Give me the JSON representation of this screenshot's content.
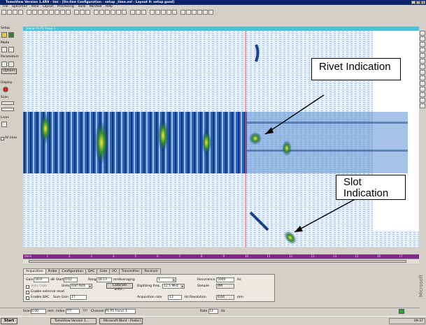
{
  "window": {
    "title": "TomoView Version 1.4R9 - tmi - [On-line Configuration - setup _time.vol - Layout 9: setup gsod]",
    "buttons": [
      "_",
      "❐",
      "×"
    ]
  },
  "menu": [
    "File",
    "Specimen",
    "Pane",
    "Layout",
    "Processing",
    "Tools",
    "Window",
    "Help"
  ],
  "left_panel": {
    "setup": "Setup",
    "mode": "Mode",
    "parameters": "Parameters",
    "options": "Options",
    "display": "Display",
    "scan": "Scan",
    "lines": "Lines",
    "all_lines": "All lines"
  },
  "view": {
    "header": "S-Scan PL-P1 Focus 1",
    "axis_ticks": [
      "0mm",
      "1",
      "2",
      "3",
      "4",
      "5",
      "6",
      "7",
      "8",
      "9",
      "10",
      "11",
      "12",
      "13",
      "14",
      "15",
      "16",
      "17"
    ]
  },
  "callouts": {
    "rivet": "Rivet Indication",
    "slot_line1": "Slot",
    "slot_line2": "Indication"
  },
  "tabs": [
    "Acquisition",
    "Probe",
    "Configuration",
    "DAC",
    "Gate",
    "I/O",
    "Transmitter",
    "Receiver"
  ],
  "acquisition": {
    "gain_label": "Gain",
    "gain_value": "50.0",
    "gain_unit": "dB",
    "start_label": "Start",
    "start_value": "0.02",
    "range_label": "Range",
    "range_value": "18.13",
    "range_unit": "mm",
    "averaging_label": "Averaging",
    "averaging_value": "1",
    "recurrence_label": "Recurrence",
    "recurrence_value": "5000",
    "recurrence_unit": "Hz",
    "calib_label": "Auto Calib",
    "units_label": "Units",
    "units_value": "Half Path",
    "calibrate_button": "Calibrate units...",
    "digitizing_label": "Digitizing freq.",
    "digitizing_value": "12.5 MHz",
    "sample_label": "Sample",
    "sample_value": "RM",
    "enable_external": "Enable external reset",
    "enable_dac": "Enable DAC",
    "sum_gain_label": "Sum Gain",
    "sum_gain_value": "17",
    "acq_rate_label": "Acquisition rate",
    "acq_rate_value": "13",
    "resolution_label": "Hz Resolution",
    "resolution_value": "0.04",
    "resolution_unit": "mm"
  },
  "status": {
    "scan_label": "Scan",
    "scan_value": "0.00",
    "scan_unit": "mm",
    "index_label": "Index",
    "index_value": "???",
    "q": "???",
    "channel_label": "Channel",
    "channel_value": "PL-P1 Focus 1",
    "rate_label": "Rate",
    "rate_value": "13",
    "rate_unit": "Hz"
  },
  "taskbar": {
    "start": "Start",
    "items": [
      "TomoView Version 1...",
      "Microsoft Word - Probe I..."
    ],
    "clock": "09:37"
  },
  "brand": "Microsoft"
}
